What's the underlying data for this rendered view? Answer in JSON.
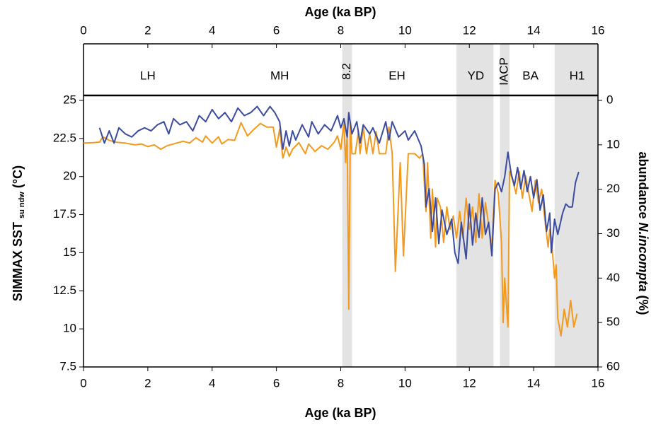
{
  "chart_data": {
    "type": "line",
    "xlabel": "Age (ka BP)",
    "top_xlabel": "Age (ka BP)",
    "ylabel": "SIMMAX SST",
    "ylabel_sub": "su ndw",
    "ylabel_unit": "(°C)",
    "y2label": "abundance",
    "y2label_italic": "N.incompta",
    "y2label_unit": "(%)",
    "xlim": [
      0,
      16
    ],
    "xticks": [
      0,
      2,
      4,
      6,
      8,
      10,
      12,
      14,
      16
    ],
    "ylim": [
      7.5,
      25
    ],
    "yticks": [
      7.5,
      10,
      12.5,
      15,
      17.5,
      20,
      22.5,
      25
    ],
    "y2lim": [
      60,
      0
    ],
    "y2ticks": [
      0,
      10,
      20,
      30,
      40,
      50,
      60
    ],
    "shaded": [
      {
        "from": 8.05,
        "to": 8.35
      },
      {
        "from": 11.6,
        "to": 12.75
      },
      {
        "from": 12.95,
        "to": 13.25
      },
      {
        "from": 14.65,
        "to": 16
      }
    ],
    "periods": [
      {
        "label": "LH",
        "x": 2
      },
      {
        "label": "MH",
        "x": 6.1
      },
      {
        "label": "8.2",
        "x": 8.2,
        "vertical": true
      },
      {
        "label": "EH",
        "x": 9.75
      },
      {
        "label": "YD",
        "x": 12.2
      },
      {
        "label": "IACP",
        "x": 13.1,
        "vertical": true
      },
      {
        "label": "BA",
        "x": 13.9
      },
      {
        "label": "H1",
        "x": 15.35
      }
    ],
    "series": [
      {
        "color": "#3a4ba0",
        "axis": "y",
        "x": [
          0.5,
          0.65,
          0.8,
          0.95,
          1.1,
          1.3,
          1.5,
          1.7,
          1.9,
          2.1,
          2.3,
          2.5,
          2.65,
          2.8,
          3.0,
          3.2,
          3.4,
          3.6,
          3.8,
          4.0,
          4.2,
          4.4,
          4.6,
          4.8,
          5.0,
          5.2,
          5.4,
          5.6,
          5.8,
          5.95,
          6.1,
          6.2,
          6.3,
          6.4,
          6.5,
          6.6,
          6.8,
          7.0,
          7.1,
          7.3,
          7.5,
          7.7,
          7.9,
          8.0,
          8.1,
          8.2,
          8.25,
          8.35,
          8.5,
          8.6,
          8.7,
          8.9,
          9.0,
          9.2,
          9.4,
          9.5,
          9.6,
          9.8,
          10.0,
          10.1,
          10.3,
          10.5,
          10.6,
          10.65,
          10.75,
          10.85,
          10.95,
          11.05,
          11.15,
          11.3,
          11.45,
          11.55,
          11.65,
          11.75,
          11.9,
          12.0,
          12.1,
          12.2,
          12.3,
          12.4,
          12.5,
          12.6,
          12.7,
          12.8,
          12.9,
          13.0,
          13.1,
          13.2,
          13.3,
          13.4,
          13.5,
          13.6,
          13.7,
          13.8,
          13.9,
          14.0,
          14.1,
          14.2,
          14.3,
          14.4,
          14.5,
          14.55,
          14.65,
          14.75,
          14.9,
          15.0,
          15.1,
          15.2,
          15.3,
          15.4
        ],
        "values": [
          23.2,
          22.2,
          23.0,
          22.2,
          23.2,
          22.8,
          22.6,
          23.0,
          23.2,
          23.0,
          23.4,
          23.6,
          22.8,
          23.8,
          23.4,
          23.6,
          23.0,
          24.0,
          23.6,
          24.4,
          23.8,
          24.2,
          23.6,
          24.5,
          24.0,
          24.2,
          24.6,
          24.0,
          24.6,
          24.2,
          23.6,
          21.8,
          23.0,
          22.0,
          23.0,
          22.4,
          23.4,
          22.6,
          23.6,
          22.8,
          23.4,
          23.0,
          24.0,
          23.2,
          23.8,
          22.6,
          24.2,
          22.8,
          23.6,
          22.2,
          23.4,
          22.8,
          23.2,
          22.2,
          23.6,
          22.4,
          23.6,
          22.6,
          23.0,
          22.4,
          23.0,
          22.0,
          20.8,
          18.0,
          19.2,
          16.4,
          18.6,
          15.6,
          17.8,
          16.2,
          17.2,
          15.0,
          14.3,
          17.0,
          14.6,
          18.2,
          15.5,
          17.6,
          16.0,
          18.6,
          16.2,
          17.0,
          14.8,
          19.2,
          19.6,
          19.0,
          20.0,
          21.6,
          20.2,
          19.4,
          20.6,
          19.2,
          20.4,
          19.0,
          20.0,
          18.6,
          19.8,
          17.8,
          18.8,
          16.4,
          17.6,
          15.0,
          17.2,
          16.2,
          17.6,
          18.2,
          18.0,
          18.0,
          19.6,
          20.3
        ]
      },
      {
        "color": "#f39a1e",
        "axis": "y2",
        "x": [
          0,
          0.3,
          0.5,
          0.6,
          0.8,
          1.0,
          1.3,
          1.6,
          1.8,
          2.0,
          2.2,
          2.4,
          2.6,
          2.9,
          3.1,
          3.3,
          3.5,
          3.7,
          3.8,
          4.0,
          4.2,
          4.3,
          4.5,
          4.7,
          4.9,
          5.1,
          5.3,
          5.5,
          5.7,
          5.9,
          6.0,
          6.1,
          6.2,
          6.3,
          6.4,
          6.5,
          6.7,
          6.9,
          7.0,
          7.2,
          7.4,
          7.6,
          7.8,
          7.9,
          8.0,
          8.1,
          8.15,
          8.2,
          8.25,
          8.3,
          8.35,
          8.45,
          8.55,
          8.6,
          8.7,
          8.8,
          8.9,
          9.0,
          9.1,
          9.2,
          9.4,
          9.5,
          9.6,
          9.7,
          9.85,
          9.95,
          10.1,
          10.3,
          10.45,
          10.55,
          10.65,
          10.7,
          10.8,
          10.85,
          10.95,
          11.0,
          11.1,
          11.2,
          11.3,
          11.4,
          11.5,
          11.6,
          11.7,
          11.8,
          11.9,
          12.0,
          12.1,
          12.2,
          12.3,
          12.4,
          12.5,
          12.6,
          12.7,
          12.8,
          12.9,
          13.0,
          13.05,
          13.1,
          13.2,
          13.25,
          13.35,
          13.45,
          13.55,
          13.65,
          13.75,
          13.85,
          13.95,
          14.05,
          14.15,
          14.25,
          14.35,
          14.45,
          14.5,
          14.55,
          14.65,
          14.7,
          14.75,
          14.85,
          14.95,
          15.05,
          15.15,
          15.25,
          15.35
        ],
        "values": [
          9.6,
          9.5,
          9.4,
          8.2,
          9.0,
          9.4,
          9.6,
          10.0,
          9.8,
          10.4,
          10.0,
          11.0,
          10.2,
          9.6,
          9.2,
          9.6,
          8.4,
          9.4,
          8.0,
          9.6,
          8.2,
          9.8,
          8.8,
          9.0,
          5.0,
          8.0,
          6.5,
          5.2,
          6.0,
          6.0,
          10.5,
          6.5,
          13.0,
          10.5,
          12.6,
          11.0,
          9.5,
          12.0,
          9.8,
          11.5,
          10.2,
          11.0,
          9.4,
          8.0,
          11.0,
          5.0,
          14.0,
          8.0,
          47.0,
          5.0,
          12.0,
          12.0,
          7.0,
          12.0,
          6.0,
          12.0,
          7.5,
          12.0,
          7.0,
          12.0,
          12.0,
          6.0,
          12.0,
          38.5,
          14.0,
          35.0,
          12.0,
          12.0,
          13.0,
          12.0,
          25.0,
          14.0,
          31.0,
          20.0,
          33.0,
          22.0,
          24.0,
          32.0,
          24.0,
          29.0,
          26.0,
          31.0,
          25.0,
          31.0,
          22.0,
          29.0,
          24.0,
          32.0,
          21.0,
          31.0,
          23.0,
          28.0,
          33.0,
          18.0,
          21.0,
          32.0,
          50.0,
          40.0,
          51.0,
          16.0,
          18.0,
          21.0,
          16.0,
          22.0,
          17.0,
          21.0,
          25.0,
          18.0,
          23.0,
          20.0,
          27.0,
          33.0,
          29.0,
          31.0,
          40.0,
          37.0,
          49.0,
          53.0,
          47.0,
          51.0,
          45.0,
          51.0,
          48.0
        ]
      }
    ]
  }
}
